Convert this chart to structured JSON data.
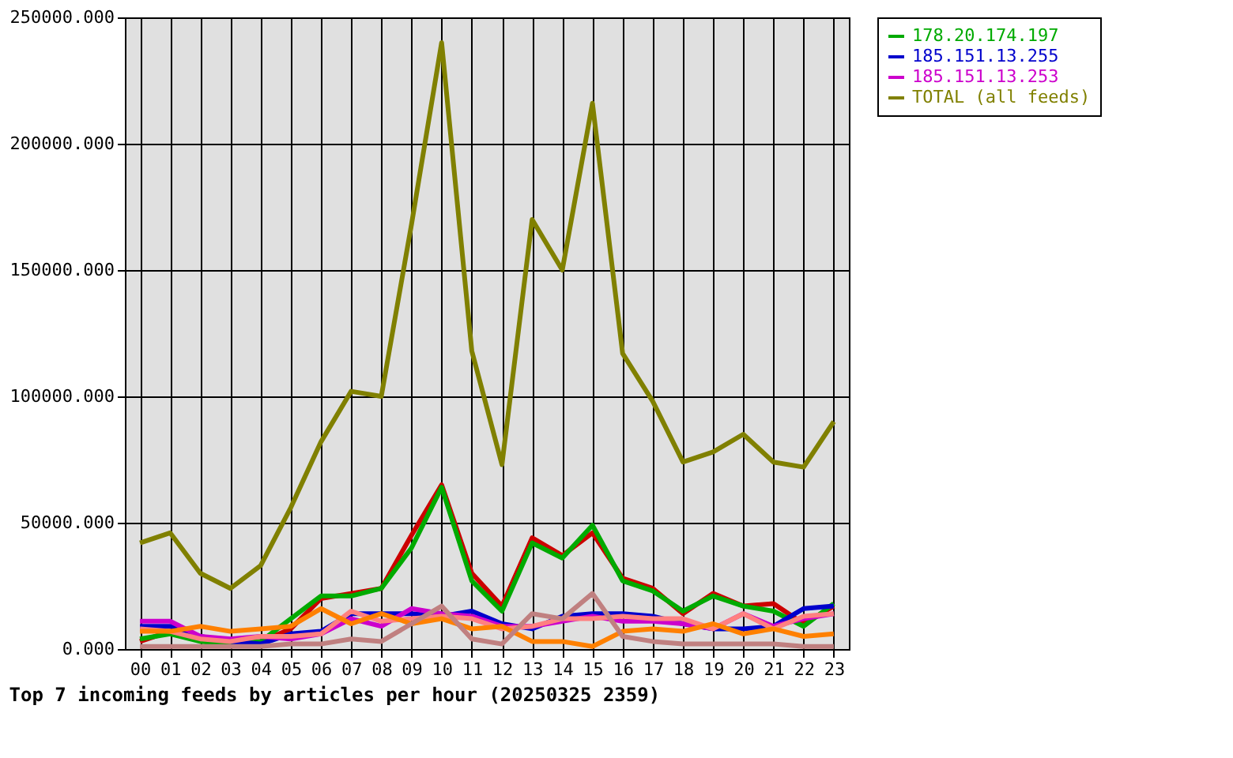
{
  "chart_data": {
    "type": "line",
    "title": "Top 7 incoming feeds by articles per hour (20250325 2359)",
    "categories": [
      "00",
      "01",
      "02",
      "03",
      "04",
      "05",
      "06",
      "07",
      "08",
      "09",
      "10",
      "11",
      "12",
      "13",
      "14",
      "15",
      "16",
      "17",
      "18",
      "19",
      "20",
      "21",
      "22",
      "23"
    ],
    "series": [
      {
        "color": "#cc0000",
        "values": [
          3000,
          7000,
          4000,
          2000,
          3000,
          8000,
          20000,
          22000,
          24000,
          45000,
          65000,
          30000,
          17000,
          44000,
          37000,
          46000,
          28000,
          24000,
          14000,
          22000,
          17000,
          18000,
          10000,
          17000
        ]
      },
      {
        "name": "178.20.174.197",
        "color": "#00aa00",
        "values": [
          4000,
          6000,
          3000,
          2000,
          3000,
          12000,
          21000,
          21000,
          24000,
          40000,
          64000,
          27000,
          15000,
          42000,
          36000,
          49000,
          27000,
          23000,
          15000,
          21000,
          17000,
          15000,
          9000,
          18000
        ]
      },
      {
        "name": "185.151.13.255",
        "color": "#0000cc",
        "values": [
          9000,
          9000,
          5000,
          3000,
          2000,
          6000,
          7000,
          14000,
          14000,
          14000,
          13000,
          15000,
          10000,
          8000,
          13000,
          14000,
          14000,
          13000,
          10000,
          8000,
          8000,
          9000,
          16000,
          17000
        ]
      },
      {
        "name": "185.151.13.253",
        "color": "#cc00cc",
        "values": [
          11000,
          11000,
          5000,
          4000,
          5000,
          4000,
          6000,
          12000,
          9000,
          16000,
          14000,
          13000,
          9000,
          9000,
          11000,
          13000,
          11000,
          11000,
          10000,
          8000,
          14000,
          9000,
          12000,
          14000
        ]
      },
      {
        "color": "#ff8080",
        "values": [
          8000,
          7000,
          4000,
          3000,
          5000,
          5000,
          6000,
          15000,
          11000,
          12000,
          13000,
          12000,
          8000,
          9000,
          12000,
          12000,
          13000,
          12000,
          12000,
          8000,
          14000,
          8000,
          13000,
          14000
        ]
      },
      {
        "color": "#ff8000",
        "values": [
          7000,
          7000,
          9000,
          7000,
          8000,
          9000,
          16000,
          10000,
          14000,
          10000,
          12000,
          8000,
          9000,
          3000,
          3000,
          1000,
          7000,
          8000,
          7000,
          10000,
          6000,
          8000,
          5000,
          6000
        ]
      },
      {
        "color": "#c08080",
        "values": [
          1000,
          1000,
          1000,
          1000,
          1000,
          2000,
          2000,
          4000,
          3000,
          10000,
          17000,
          4000,
          2000,
          14000,
          12000,
          22000,
          5000,
          3000,
          2000,
          2000,
          2000,
          2000,
          1000,
          1000
        ]
      },
      {
        "name": "TOTAL (all feeds)",
        "color": "#808000",
        "values": [
          42000,
          46000,
          30000,
          24000,
          33000,
          56000,
          82000,
          102000,
          100000,
          168000,
          240000,
          118000,
          73000,
          170000,
          150000,
          216000,
          117000,
          98000,
          74000,
          78000,
          85000,
          74000,
          72000,
          90000
        ]
      }
    ],
    "ylim": [
      0,
      250000
    ],
    "yticks": [
      {
        "value": 0,
        "label": "0.000"
      },
      {
        "value": 50000,
        "label": "50000.000"
      },
      {
        "value": 100000,
        "label": "100000.000"
      },
      {
        "value": 150000,
        "label": "150000.000"
      },
      {
        "value": 200000,
        "label": "200000.000"
      },
      {
        "value": 250000,
        "label": "250000.000"
      }
    ],
    "grid": true,
    "legend": "top right",
    "marker": "none",
    "line_style": "solid"
  }
}
